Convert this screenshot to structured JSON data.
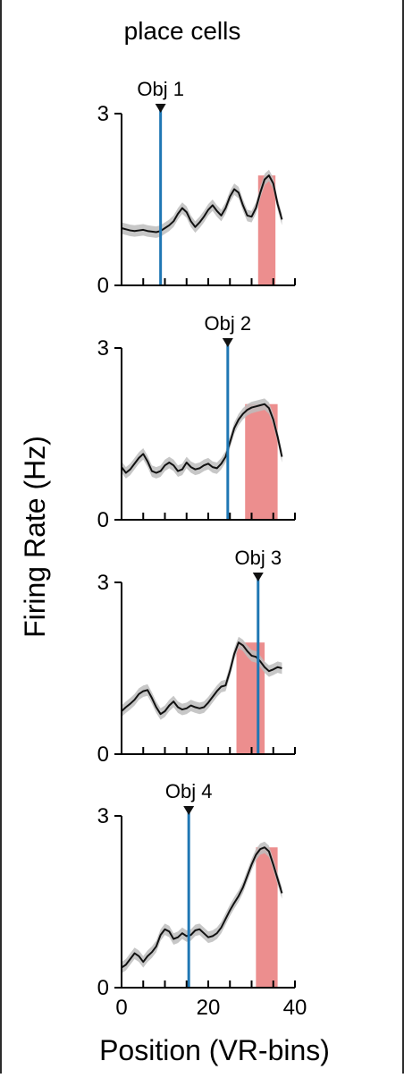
{
  "chart_data": {
    "title": "place cells",
    "title_color": "#e57373",
    "type": "line",
    "xlabel": "Position (VR-bins)",
    "ylabel": "Firing Rate (Hz)",
    "xlim": [
      0,
      40
    ],
    "ylim": [
      0,
      3
    ],
    "x_ticks": [
      0,
      20,
      40
    ],
    "y_ticks": [
      0,
      3
    ],
    "colors": {
      "mean_line": "#111111",
      "sem_band": "#bdbdbd",
      "object_line": "#1f77b4",
      "place_field": "#ec8e8e",
      "object_marker": "#111111"
    },
    "panels": [
      {
        "object_label": "Obj 1",
        "object_position": 9,
        "place_field": [
          31.5,
          35.5
        ],
        "x": [
          0,
          1,
          2,
          3,
          4,
          5,
          6,
          7,
          8,
          9,
          10,
          11,
          12,
          13,
          14,
          15,
          16,
          17,
          18,
          19,
          20,
          21,
          22,
          23,
          24,
          25,
          26,
          27,
          28,
          29,
          30,
          31,
          32,
          33,
          34,
          35,
          36,
          37
        ],
        "y": [
          1.0,
          0.98,
          0.96,
          0.95,
          0.96,
          0.97,
          0.95,
          0.94,
          0.93,
          0.95,
          1.0,
          1.05,
          1.12,
          1.25,
          1.35,
          1.28,
          1.12,
          1.02,
          1.1,
          1.2,
          1.32,
          1.4,
          1.3,
          1.22,
          1.35,
          1.55,
          1.68,
          1.62,
          1.4,
          1.22,
          1.2,
          1.35,
          1.62,
          1.85,
          1.92,
          1.78,
          1.42,
          1.15
        ],
        "sem": 0.1
      },
      {
        "object_label": "Obj 2",
        "object_position": 24.5,
        "place_field": [
          28.5,
          36
        ],
        "x": [
          0,
          1,
          2,
          3,
          4,
          5,
          6,
          7,
          8,
          9,
          10,
          11,
          12,
          13,
          14,
          15,
          16,
          17,
          18,
          19,
          20,
          21,
          22,
          23,
          24,
          25,
          26,
          27,
          28,
          29,
          30,
          31,
          32,
          33,
          34,
          35,
          36,
          37
        ],
        "y": [
          0.92,
          0.82,
          0.88,
          0.98,
          1.08,
          1.15,
          1.02,
          0.85,
          0.82,
          0.85,
          0.95,
          1.0,
          0.95,
          0.85,
          0.88,
          1.0,
          0.92,
          0.88,
          0.9,
          0.95,
          0.98,
          0.92,
          0.9,
          0.98,
          1.1,
          1.35,
          1.6,
          1.75,
          1.85,
          1.92,
          1.96,
          1.98,
          2.0,
          2.02,
          1.95,
          1.75,
          1.45,
          1.1
        ],
        "sem": 0.1
      },
      {
        "object_label": "Obj 3",
        "object_position": 31.5,
        "place_field": [
          26.5,
          33
        ],
        "x": [
          0,
          1,
          2,
          3,
          4,
          5,
          6,
          7,
          8,
          9,
          10,
          11,
          12,
          13,
          14,
          15,
          16,
          17,
          18,
          19,
          20,
          21,
          22,
          23,
          24,
          25,
          26,
          27,
          28,
          29,
          30,
          31,
          32,
          33,
          34,
          35,
          36,
          37
        ],
        "y": [
          0.75,
          0.82,
          0.88,
          0.95,
          1.05,
          1.1,
          1.12,
          0.98,
          0.82,
          0.7,
          0.75,
          0.85,
          0.92,
          0.82,
          0.78,
          0.8,
          0.85,
          0.82,
          0.8,
          0.82,
          0.9,
          1.0,
          1.1,
          1.18,
          1.2,
          1.45,
          1.75,
          1.95,
          1.9,
          1.8,
          1.72,
          1.7,
          1.62,
          1.52,
          1.45,
          1.48,
          1.52,
          1.5
        ],
        "sem": 0.1
      },
      {
        "object_label": "Obj 4",
        "object_position": 15.5,
        "place_field": [
          31,
          36
        ],
        "x": [
          0,
          1,
          2,
          3,
          4,
          5,
          6,
          7,
          8,
          9,
          10,
          11,
          12,
          13,
          14,
          15,
          16,
          17,
          18,
          19,
          20,
          21,
          22,
          23,
          24,
          25,
          26,
          27,
          28,
          29,
          30,
          31,
          32,
          33,
          34,
          35,
          36,
          37
        ],
        "y": [
          0.35,
          0.4,
          0.5,
          0.6,
          0.55,
          0.45,
          0.55,
          0.62,
          0.72,
          0.92,
          1.02,
          0.98,
          0.85,
          0.88,
          0.95,
          0.9,
          0.92,
          1.0,
          1.02,
          0.95,
          0.88,
          0.9,
          0.95,
          1.05,
          1.2,
          1.35,
          1.48,
          1.6,
          1.75,
          1.95,
          2.15,
          2.32,
          2.42,
          2.45,
          2.38,
          2.15,
          1.9,
          1.65
        ],
        "sem": 0.1
      }
    ]
  }
}
